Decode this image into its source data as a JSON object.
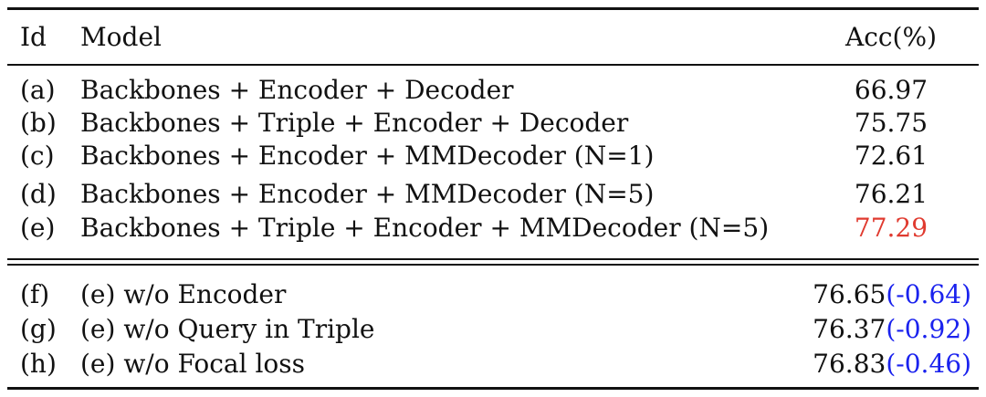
{
  "colors": {
    "text": "#111111",
    "best": "#e03a2f",
    "delta": "#1a22ee"
  },
  "table": {
    "headers": {
      "id": "Id",
      "model": "Model",
      "acc": "Acc(%)"
    },
    "main_rows": [
      {
        "id": "(a)",
        "model": "Backbones + Encoder + Decoder",
        "acc": "66.97"
      },
      {
        "id": "(b)",
        "model": "Backbones + Triple + Encoder + Decoder",
        "acc": "75.75"
      },
      {
        "id": "(c)",
        "model": "Backbones + Encoder + MMDecoder (N=1)",
        "acc": "72.61"
      },
      {
        "id": "(d)",
        "model": "Backbones + Encoder + MMDecoder (N=5)",
        "acc": "76.21"
      },
      {
        "id": "(e)",
        "model": "Backbones + Triple + Encoder + MMDecoder (N=5)",
        "acc": "77.29"
      }
    ],
    "ablation_rows": [
      {
        "id": "(f)",
        "model": "(e) w/o Encoder",
        "acc": "76.65",
        "delta": "(-0.64)"
      },
      {
        "id": "(g)",
        "model": "(e) w/o Query in Triple",
        "acc": "76.37",
        "delta": "(-0.92)"
      },
      {
        "id": "(h)",
        "model": "(e) w/o Focal loss",
        "acc": "76.83",
        "delta": "(-0.46)"
      }
    ]
  }
}
